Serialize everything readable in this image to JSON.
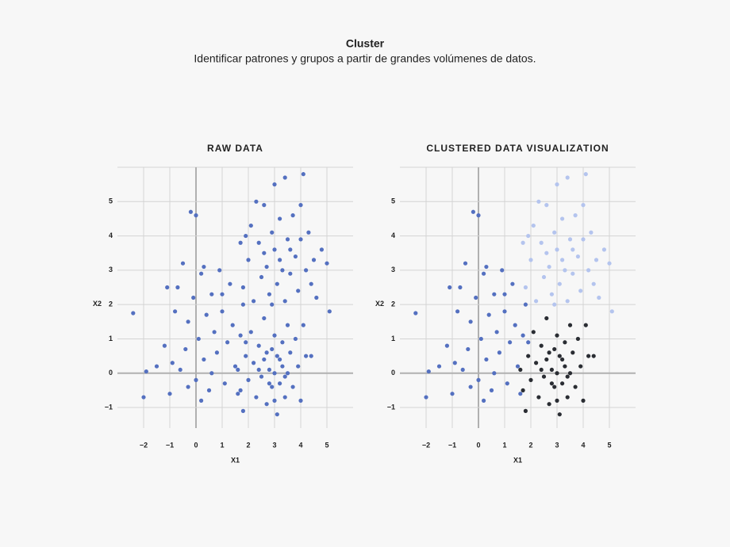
{
  "header": {
    "title": "Cluster",
    "subtitle": "Identificar patrones y grupos a partir de grandes volúmenes de datos."
  },
  "chart_data": [
    {
      "type": "scatter",
      "title": "RAW DATA",
      "xlabel": "X1",
      "ylabel": "X2",
      "xlim": [
        -3,
        6
      ],
      "ylim": [
        -1.6,
        6
      ],
      "xticks": [
        {
          "value": -2,
          "label": "−2"
        },
        {
          "value": -1,
          "label": "−1"
        },
        0,
        1,
        2,
        3,
        4,
        5
      ],
      "yticks": [
        {
          "value": -1,
          "label": "−1"
        },
        0,
        1,
        2,
        3,
        4,
        5
      ],
      "grid": true,
      "series": [
        {
          "color": "#5470c0",
          "x": [
            -2.4,
            -1.9,
            -2.0,
            -1.5,
            -1.2,
            -1.1,
            -1.0,
            -0.8,
            -0.7,
            -0.6,
            -0.4,
            -0.3,
            -0.3,
            -0.2,
            -0.1,
            0.0,
            0.0,
            0.1,
            0.2,
            0.3,
            0.4,
            0.5,
            0.6,
            0.7,
            0.8,
            0.9,
            1.0,
            1.1,
            1.2,
            1.3,
            1.4,
            1.5,
            1.6,
            1.7,
            1.8,
            0.3,
            -0.5,
            1.0,
            0.2,
            1.9,
            -0.9,
            0.6,
            1.8,
            2.0,
            2.1,
            2.2,
            2.4,
            2.5,
            2.6,
            2.7,
            2.8,
            2.9,
            3.0,
            3.0,
            3.1,
            3.2,
            3.3,
            3.4,
            3.4,
            3.5,
            3.6,
            3.7,
            3.8,
            3.9,
            4.0,
            4.1,
            4.2,
            4.3,
            4.4,
            4.5,
            4.6,
            4.8,
            5.0,
            5.1,
            2.3,
            1.7,
            2.6,
            3.2,
            3.6,
            2.9,
            4.0,
            1.9,
            1.6,
            1.7,
            1.8,
            1.9,
            2.0,
            2.1,
            2.2,
            2.3,
            2.4,
            2.5,
            2.6,
            2.6,
            2.7,
            2.8,
            2.9,
            2.9,
            3.0,
            3.0,
            3.1,
            3.1,
            3.2,
            3.3,
            3.3,
            3.4,
            3.5,
            3.5,
            3.6,
            3.7,
            3.8,
            3.9,
            4.0,
            4.1,
            4.2,
            4.4,
            2.4,
            2.8,
            3.2,
            2.7,
            3.4,
            3.0
          ],
          "y": [
            1.75,
            0.05,
            -0.7,
            0.2,
            0.8,
            2.5,
            -0.6,
            1.8,
            2.5,
            0.1,
            0.7,
            1.5,
            -0.4,
            4.7,
            2.2,
            4.6,
            -0.2,
            1.0,
            2.9,
            0.4,
            1.7,
            -0.5,
            2.3,
            1.2,
            0.6,
            3.0,
            1.8,
            -0.3,
            0.9,
            2.6,
            1.4,
            0.2,
            -0.6,
            1.1,
            2.0,
            3.1,
            3.2,
            2.3,
            -0.8,
            0.9,
            0.3,
            0.0,
            2.5,
            3.3,
            4.3,
            2.1,
            3.8,
            2.8,
            4.9,
            3.1,
            2.3,
            4.1,
            5.5,
            3.6,
            2.6,
            4.5,
            3.0,
            5.7,
            2.1,
            3.9,
            2.9,
            4.6,
            3.4,
            2.4,
            3.9,
            5.8,
            3.0,
            4.1,
            2.6,
            3.3,
            2.2,
            3.6,
            3.2,
            1.8,
            5.0,
            3.8,
            3.5,
            3.3,
            3.6,
            2.0,
            4.9,
            4.0,
            0.1,
            -0.5,
            -1.1,
            0.5,
            -0.2,
            1.2,
            0.3,
            -0.7,
            0.8,
            -0.1,
            1.6,
            0.4,
            -0.9,
            0.1,
            0.7,
            -0.4,
            1.1,
            0.0,
            -1.2,
            0.5,
            -0.3,
            0.9,
            0.2,
            -0.7,
            1.4,
            0.0,
            0.6,
            -0.4,
            1.0,
            0.2,
            -0.8,
            1.4,
            0.5,
            0.5,
            0.1,
            -0.3,
            0.4,
            0.6,
            -0.1,
            -0.8
          ]
        }
      ]
    },
    {
      "type": "scatter",
      "title": "CLUSTERED DATA VISUALIZATION",
      "xlabel": "X1",
      "ylabel": "X2",
      "xlim": [
        -3,
        6
      ],
      "ylim": [
        -1.6,
        6
      ],
      "xticks": [
        {
          "value": -2,
          "label": "−2"
        },
        {
          "value": -1,
          "label": "−1"
        },
        0,
        1,
        2,
        3,
        4,
        5
      ],
      "yticks": [
        {
          "value": -1,
          "label": "−1"
        },
        0,
        1,
        2,
        3,
        4,
        5
      ],
      "grid": true,
      "series": [
        {
          "color": "#5470c0",
          "x": [
            -2.4,
            -1.9,
            -2.0,
            -1.5,
            -1.2,
            -1.1,
            -1.0,
            -0.8,
            -0.7,
            -0.6,
            -0.4,
            -0.3,
            -0.3,
            -0.2,
            -0.1,
            0.0,
            0.0,
            0.1,
            0.2,
            0.3,
            0.4,
            0.5,
            0.6,
            0.7,
            0.8,
            0.9,
            1.0,
            1.1,
            1.2,
            1.3,
            1.4,
            1.5,
            1.6,
            1.7,
            1.8,
            0.3,
            -0.5,
            1.0,
            0.2,
            1.9,
            -0.9,
            0.6
          ],
          "y": [
            1.75,
            0.05,
            -0.7,
            0.2,
            0.8,
            2.5,
            -0.6,
            1.8,
            2.5,
            0.1,
            0.7,
            1.5,
            -0.4,
            4.7,
            2.2,
            4.6,
            -0.2,
            1.0,
            2.9,
            0.4,
            1.7,
            -0.5,
            2.3,
            1.2,
            0.6,
            3.0,
            1.8,
            -0.3,
            0.9,
            2.6,
            1.4,
            0.2,
            -0.6,
            1.1,
            2.0,
            3.1,
            3.2,
            2.3,
            -0.8,
            0.9,
            0.3,
            0.0
          ]
        },
        {
          "color": "#b4c4ee",
          "x": [
            1.8,
            2.0,
            2.1,
            2.2,
            2.4,
            2.5,
            2.6,
            2.7,
            2.8,
            2.9,
            3.0,
            3.0,
            3.1,
            3.2,
            3.3,
            3.4,
            3.4,
            3.5,
            3.6,
            3.7,
            3.8,
            3.9,
            4.0,
            4.1,
            4.2,
            4.3,
            4.4,
            4.5,
            4.6,
            4.8,
            5.0,
            5.1,
            2.3,
            1.7,
            2.6,
            3.2,
            3.6,
            2.9,
            4.0,
            1.9
          ],
          "y": [
            2.5,
            3.3,
            4.3,
            2.1,
            3.8,
            2.8,
            4.9,
            3.1,
            2.3,
            4.1,
            5.5,
            3.6,
            2.6,
            4.5,
            3.0,
            5.7,
            2.1,
            3.9,
            2.9,
            4.6,
            3.4,
            2.4,
            3.9,
            5.8,
            3.0,
            4.1,
            2.6,
            3.3,
            2.2,
            3.6,
            3.2,
            1.8,
            5.0,
            3.8,
            3.5,
            3.3,
            3.6,
            2.0,
            4.9,
            4.0
          ]
        },
        {
          "color": "#2a2d33",
          "x": [
            1.6,
            1.7,
            1.8,
            1.9,
            2.0,
            2.1,
            2.2,
            2.3,
            2.4,
            2.5,
            2.6,
            2.6,
            2.7,
            2.8,
            2.9,
            2.9,
            3.0,
            3.0,
            3.1,
            3.1,
            3.2,
            3.3,
            3.3,
            3.4,
            3.5,
            3.5,
            3.6,
            3.7,
            3.8,
            3.9,
            4.0,
            4.1,
            4.2,
            4.4,
            2.4,
            2.8,
            3.2,
            2.7,
            3.4,
            3.0
          ],
          "y": [
            0.1,
            -0.5,
            -1.1,
            0.5,
            -0.2,
            1.2,
            0.3,
            -0.7,
            0.8,
            -0.1,
            1.6,
            0.4,
            -0.9,
            0.1,
            0.7,
            -0.4,
            1.1,
            0.0,
            -1.2,
            0.5,
            -0.3,
            0.9,
            0.2,
            -0.7,
            1.4,
            0.0,
            0.6,
            -0.4,
            1.0,
            0.2,
            -0.8,
            1.4,
            0.5,
            0.5,
            0.1,
            -0.3,
            0.4,
            0.6,
            -0.1,
            -0.8
          ]
        }
      ]
    }
  ]
}
